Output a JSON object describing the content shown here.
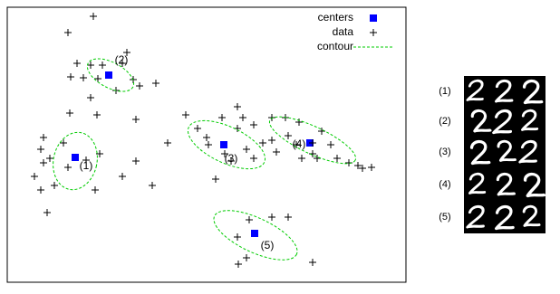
{
  "chart_data": {
    "type": "scatter",
    "xlim": [
      0,
      440
    ],
    "ylim": [
      0,
      304
    ],
    "series": [
      {
        "name": "centers",
        "color": "#0000ff",
        "x": [
          75,
          112,
          239,
          334,
          273
        ],
        "values": [
          138,
          229,
          152,
          154,
          54
        ]
      },
      {
        "name": "data",
        "color": "#000000",
        "x": [
          95,
          67,
          132,
          77,
          92,
          105,
          127,
          70,
          84,
          100,
          139,
          146,
          120,
          164,
          92,
          69,
          99,
          142,
          197,
          210,
          237,
          254,
          260,
          254,
          272,
          292,
          307,
          322,
          177,
          222,
          220,
          240,
          264,
          282,
          292,
          247,
          272,
          230,
          40,
          37,
          62,
          47,
          40,
          30,
          67,
          87,
          102,
          142,
          127,
          97,
          37,
          52,
          44,
          160,
          347,
          357,
          337,
          342,
          364,
          377,
          387,
          392,
          402,
          337,
          319,
          310,
          297,
          325,
          254,
          267,
          292,
          310,
          337,
          255,
          264
        ],
        "values": [
          294,
          276,
          254,
          242,
          240,
          240,
          242,
          227,
          226,
          225,
          224,
          217,
          212,
          220,
          204,
          187,
          185,
          180,
          185,
          170,
          182,
          194,
          182,
          170,
          174,
          182,
          182,
          177,
          154,
          152,
          160,
          142,
          147,
          154,
          157,
          134,
          137,
          114,
          160,
          147,
          154,
          137,
          132,
          117,
          127,
          135,
          142,
          134,
          117,
          102,
          102,
          107,
          77,
          107,
          167,
          152,
          142,
          137,
          137,
          132,
          129,
          126,
          127,
          154,
          152,
          162,
          144,
          137,
          50,
          69,
          72,
          72,
          22,
          20,
          27
        ]
      },
      {
        "name": "contour",
        "color": "#00cc00",
        "ellipses": [
          {
            "cx": 75,
            "cy": 134,
            "rx": 24,
            "ry": 32,
            "angle": 12
          },
          {
            "cx": 114,
            "cy": 229,
            "rx": 28,
            "ry": 14,
            "angle": 28
          },
          {
            "cx": 242,
            "cy": 152,
            "rx": 46,
            "ry": 20,
            "angle": 25
          },
          {
            "cx": 337,
            "cy": 157,
            "rx": 52,
            "ry": 15,
            "angle": 25
          },
          {
            "cx": 274,
            "cy": 52,
            "rx": 50,
            "ry": 19,
            "angle": 25
          }
        ]
      }
    ],
    "annotations": [
      "(1)",
      "(2)",
      "(3)",
      "(4)",
      "(5)"
    ],
    "legend": "upper right",
    "digit_rows": [
      "(1)",
      "(2)",
      "(3)",
      "(4)",
      "(5)"
    ]
  }
}
